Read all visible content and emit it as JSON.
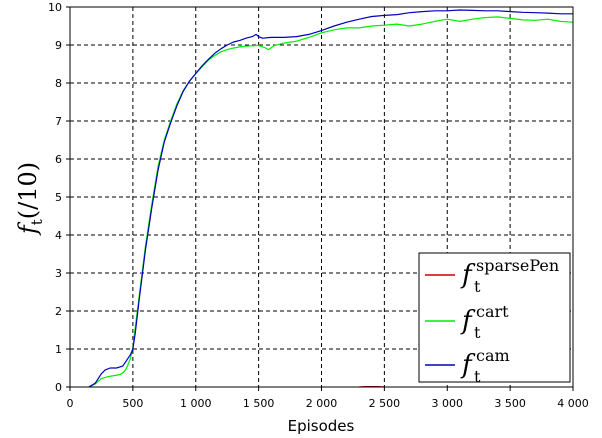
{
  "chart_data": {
    "type": "line",
    "xlabel": "Episodes",
    "ylabel": {
      "main": "f",
      "sub": "t",
      "suffix": "(/10)"
    },
    "xlim": [
      0,
      4000
    ],
    "ylim": [
      0,
      10
    ],
    "x_ticks": [
      0,
      500,
      1000,
      1500,
      2000,
      2500,
      3000,
      3500,
      4000
    ],
    "x_tick_labels": [
      "0",
      "500",
      "1 000",
      "1 500",
      "2 000",
      "2 500",
      "3 000",
      "3 500",
      "4 000"
    ],
    "y_ticks": [
      0,
      1,
      2,
      3,
      4,
      5,
      6,
      7,
      8,
      9,
      10
    ],
    "y_tick_labels": [
      "0",
      "1",
      "2",
      "3",
      "4",
      "5",
      "6",
      "7",
      "8",
      "9",
      "10"
    ],
    "grid": true,
    "grid_style": "dashed",
    "legend_position": "bottom-right",
    "series": [
      {
        "name": "sparsePen",
        "legend_main": "f",
        "legend_sup": "sparsePen",
        "legend_sub": "t",
        "color": "#cc0000",
        "points": [
          [
            2300,
            0
          ],
          [
            2350,
            0.01
          ],
          [
            2400,
            0.01
          ],
          [
            2450,
            0.01
          ],
          [
            2500,
            0
          ]
        ]
      },
      {
        "name": "cart",
        "legend_main": "f",
        "legend_sup": "cart",
        "legend_sub": "t",
        "color": "#00ee00",
        "points": [
          [
            150,
            0
          ],
          [
            200,
            0.08
          ],
          [
            250,
            0.22
          ],
          [
            300,
            0.27
          ],
          [
            350,
            0.3
          ],
          [
            400,
            0.33
          ],
          [
            430,
            0.4
          ],
          [
            450,
            0.5
          ],
          [
            480,
            0.75
          ],
          [
            500,
            1.05
          ],
          [
            520,
            1.6
          ],
          [
            550,
            2.4
          ],
          [
            600,
            3.7
          ],
          [
            650,
            4.8
          ],
          [
            700,
            5.8
          ],
          [
            750,
            6.5
          ],
          [
            800,
            7.0
          ],
          [
            850,
            7.45
          ],
          [
            900,
            7.8
          ],
          [
            950,
            8.05
          ],
          [
            1000,
            8.25
          ],
          [
            1050,
            8.42
          ],
          [
            1100,
            8.6
          ],
          [
            1150,
            8.72
          ],
          [
            1200,
            8.82
          ],
          [
            1250,
            8.88
          ],
          [
            1300,
            8.92
          ],
          [
            1350,
            8.95
          ],
          [
            1400,
            8.97
          ],
          [
            1450,
            8.98
          ],
          [
            1500,
            8.99
          ],
          [
            1550,
            8.93
          ],
          [
            1580,
            8.88
          ],
          [
            1620,
            8.98
          ],
          [
            1700,
            9.05
          ],
          [
            1800,
            9.1
          ],
          [
            1900,
            9.2
          ],
          [
            2000,
            9.32
          ],
          [
            2100,
            9.4
          ],
          [
            2200,
            9.45
          ],
          [
            2300,
            9.45
          ],
          [
            2400,
            9.5
          ],
          [
            2500,
            9.52
          ],
          [
            2600,
            9.55
          ],
          [
            2700,
            9.5
          ],
          [
            2800,
            9.55
          ],
          [
            2900,
            9.62
          ],
          [
            3000,
            9.68
          ],
          [
            3100,
            9.62
          ],
          [
            3200,
            9.68
          ],
          [
            3300,
            9.72
          ],
          [
            3400,
            9.74
          ],
          [
            3500,
            9.7
          ],
          [
            3600,
            9.66
          ],
          [
            3700,
            9.65
          ],
          [
            3800,
            9.68
          ],
          [
            3900,
            9.62
          ],
          [
            4000,
            9.6
          ]
        ]
      },
      {
        "name": "cam",
        "legend_main": "f",
        "legend_sup": "cam",
        "legend_sub": "t",
        "color": "#0000bb",
        "points": [
          [
            150,
            0
          ],
          [
            200,
            0.1
          ],
          [
            250,
            0.35
          ],
          [
            280,
            0.45
          ],
          [
            320,
            0.5
          ],
          [
            370,
            0.5
          ],
          [
            420,
            0.55
          ],
          [
            450,
            0.7
          ],
          [
            480,
            0.85
          ],
          [
            500,
            1.0
          ],
          [
            520,
            1.45
          ],
          [
            550,
            2.3
          ],
          [
            600,
            3.6
          ],
          [
            650,
            4.7
          ],
          [
            700,
            5.7
          ],
          [
            750,
            6.45
          ],
          [
            800,
            6.95
          ],
          [
            850,
            7.4
          ],
          [
            900,
            7.78
          ],
          [
            950,
            8.05
          ],
          [
            1000,
            8.25
          ],
          [
            1050,
            8.45
          ],
          [
            1100,
            8.62
          ],
          [
            1150,
            8.78
          ],
          [
            1200,
            8.9
          ],
          [
            1250,
            9.0
          ],
          [
            1300,
            9.08
          ],
          [
            1350,
            9.12
          ],
          [
            1400,
            9.18
          ],
          [
            1450,
            9.22
          ],
          [
            1480,
            9.28
          ],
          [
            1500,
            9.22
          ],
          [
            1530,
            9.18
          ],
          [
            1600,
            9.2
          ],
          [
            1700,
            9.2
          ],
          [
            1800,
            9.22
          ],
          [
            1900,
            9.28
          ],
          [
            2000,
            9.38
          ],
          [
            2100,
            9.5
          ],
          [
            2200,
            9.6
          ],
          [
            2300,
            9.68
          ],
          [
            2400,
            9.75
          ],
          [
            2500,
            9.78
          ],
          [
            2600,
            9.8
          ],
          [
            2700,
            9.85
          ],
          [
            2800,
            9.88
          ],
          [
            2900,
            9.9
          ],
          [
            3000,
            9.9
          ],
          [
            3100,
            9.92
          ],
          [
            3200,
            9.91
          ],
          [
            3300,
            9.9
          ],
          [
            3400,
            9.9
          ],
          [
            3500,
            9.88
          ],
          [
            3600,
            9.86
          ],
          [
            3700,
            9.85
          ],
          [
            3800,
            9.84
          ],
          [
            3900,
            9.82
          ],
          [
            4000,
            9.82
          ]
        ]
      }
    ]
  }
}
